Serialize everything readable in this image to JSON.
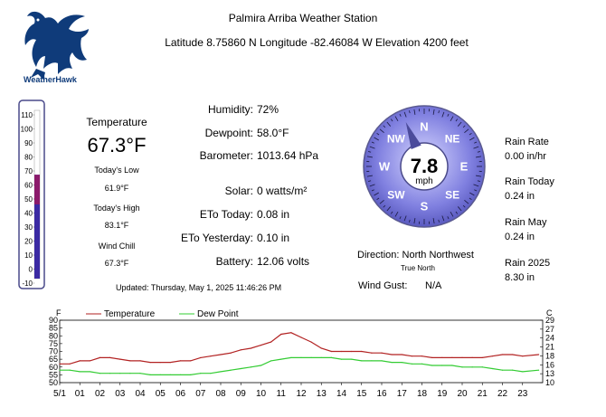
{
  "header": {
    "title": "Palmira Arriba Weather Station",
    "location": "Latitude 8.75860 N   Longitude -82.46084 W   Elevation 4200 feet",
    "logo_text": "WeatherHawk"
  },
  "thermometer": {
    "scale": [
      "110",
      "100",
      "90",
      "80",
      "70",
      "60",
      "50",
      "40",
      "30",
      "20",
      "10",
      "0",
      "-10"
    ],
    "level": 67.3
  },
  "temperature": {
    "label": "Temperature",
    "value": "67.3°F",
    "low_label": "Today's Low",
    "low_value": "61.9°F",
    "high_label": "Today's High",
    "high_value": "83.1°F",
    "chill_label": "Wind Chill",
    "chill_value": "67.3°F"
  },
  "readings": {
    "humidity_label": "Humidity:",
    "humidity_value": "72%",
    "dewpoint_label": "Dewpoint:",
    "dewpoint_value": "58.0°F",
    "barometer_label": "Barometer:",
    "barometer_value": "1013.64 hPa",
    "solar_label": "Solar:",
    "solar_value": "0 watts/m²",
    "eto_today_label": "ETo Today:",
    "eto_today_value": "0.08 in",
    "eto_yesterday_label": "ETo Yesterday:",
    "eto_yesterday_value": "0.10 in",
    "battery_label": "Battery:",
    "battery_value": "12.06 volts"
  },
  "updated": "Updated: Thursday, May 1, 2025 11:46:26 PM",
  "wind": {
    "speed": "7.8",
    "unit": "mph",
    "points": [
      "N",
      "NE",
      "E",
      "SE",
      "S",
      "SW",
      "W",
      "NW"
    ],
    "direction_text": "Direction: North Northwest",
    "true_north": "True North",
    "gust_label": "Wind Gust:",
    "gust_value": "N/A",
    "heading_deg": 337.5
  },
  "rain": {
    "rate_label": "Rain Rate",
    "rate_value": "0.00 in/hr",
    "today_label": "Rain Today",
    "today_value": "0.24 in",
    "month_label": "Rain May",
    "month_value": "0.24 in",
    "year_label": "Rain 2025",
    "year_value": "8.30 in"
  },
  "colors": {
    "temperature_line": "#b22222",
    "dewpoint_line": "#33cc33",
    "compass_face": "#7f7fe0",
    "thermo_fill": "#8b1a6b",
    "thermo_bar": "#3b2aa3"
  },
  "chart_data": {
    "type": "line",
    "left_unit": "F",
    "right_unit": "C",
    "y_left_ticks": [
      "90",
      "85",
      "80",
      "75",
      "70",
      "65",
      "60",
      "55",
      "50"
    ],
    "y_right_ticks": [
      "29",
      "27",
      "24",
      "21",
      "18",
      "16",
      "13",
      "10"
    ],
    "ylim": [
      50,
      90
    ],
    "x_ticks": [
      "5/1",
      "01",
      "02",
      "03",
      "04",
      "05",
      "06",
      "07",
      "08",
      "09",
      "10",
      "11",
      "12",
      "13",
      "14",
      "15",
      "16",
      "17",
      "18",
      "19",
      "20",
      "21",
      "22",
      "23"
    ],
    "series": [
      {
        "name": "Temperature",
        "x": [
          0,
          0.5,
          1,
          1.5,
          2,
          2.5,
          3,
          3.5,
          4,
          4.5,
          5,
          5.5,
          6,
          6.5,
          7,
          7.5,
          8,
          8.5,
          9,
          9.5,
          10,
          10.5,
          11,
          11.5,
          12,
          12.5,
          13,
          13.5,
          14,
          14.5,
          15,
          15.5,
          16,
          16.5,
          17,
          17.5,
          18,
          18.5,
          19,
          19.5,
          20,
          20.5,
          21,
          21.5,
          22,
          22.5,
          23,
          23.8
        ],
        "values": [
          62,
          62,
          64,
          64,
          66,
          66,
          65,
          64,
          64,
          63,
          63,
          63,
          64,
          64,
          66,
          67,
          68,
          69,
          71,
          72,
          74,
          76,
          81,
          82,
          79,
          76,
          72,
          70,
          70,
          70,
          70,
          69,
          69,
          68,
          68,
          67,
          67,
          66,
          66,
          66,
          66,
          66,
          66,
          67,
          68,
          68,
          67,
          68
        ]
      },
      {
        "name": "Dew Point",
        "x": [
          0,
          0.5,
          1,
          1.5,
          2,
          2.5,
          3,
          3.5,
          4,
          4.5,
          5,
          5.5,
          6,
          6.5,
          7,
          7.5,
          8,
          8.5,
          9,
          9.5,
          10,
          10.5,
          11,
          11.5,
          12,
          12.5,
          13,
          13.5,
          14,
          14.5,
          15,
          15.5,
          16,
          16.5,
          17,
          17.5,
          18,
          18.5,
          19,
          19.5,
          20,
          20.5,
          21,
          21.5,
          22,
          22.5,
          23,
          23.8
        ],
        "values": [
          58,
          58,
          57,
          57,
          56,
          56,
          56,
          56,
          56,
          55,
          55,
          55,
          55,
          55,
          56,
          56,
          57,
          58,
          59,
          60,
          61,
          64,
          65,
          66,
          66,
          66,
          66,
          66,
          65,
          65,
          64,
          64,
          64,
          63,
          63,
          62,
          62,
          61,
          61,
          61,
          60,
          60,
          60,
          59,
          58,
          58,
          57,
          58
        ]
      }
    ]
  }
}
